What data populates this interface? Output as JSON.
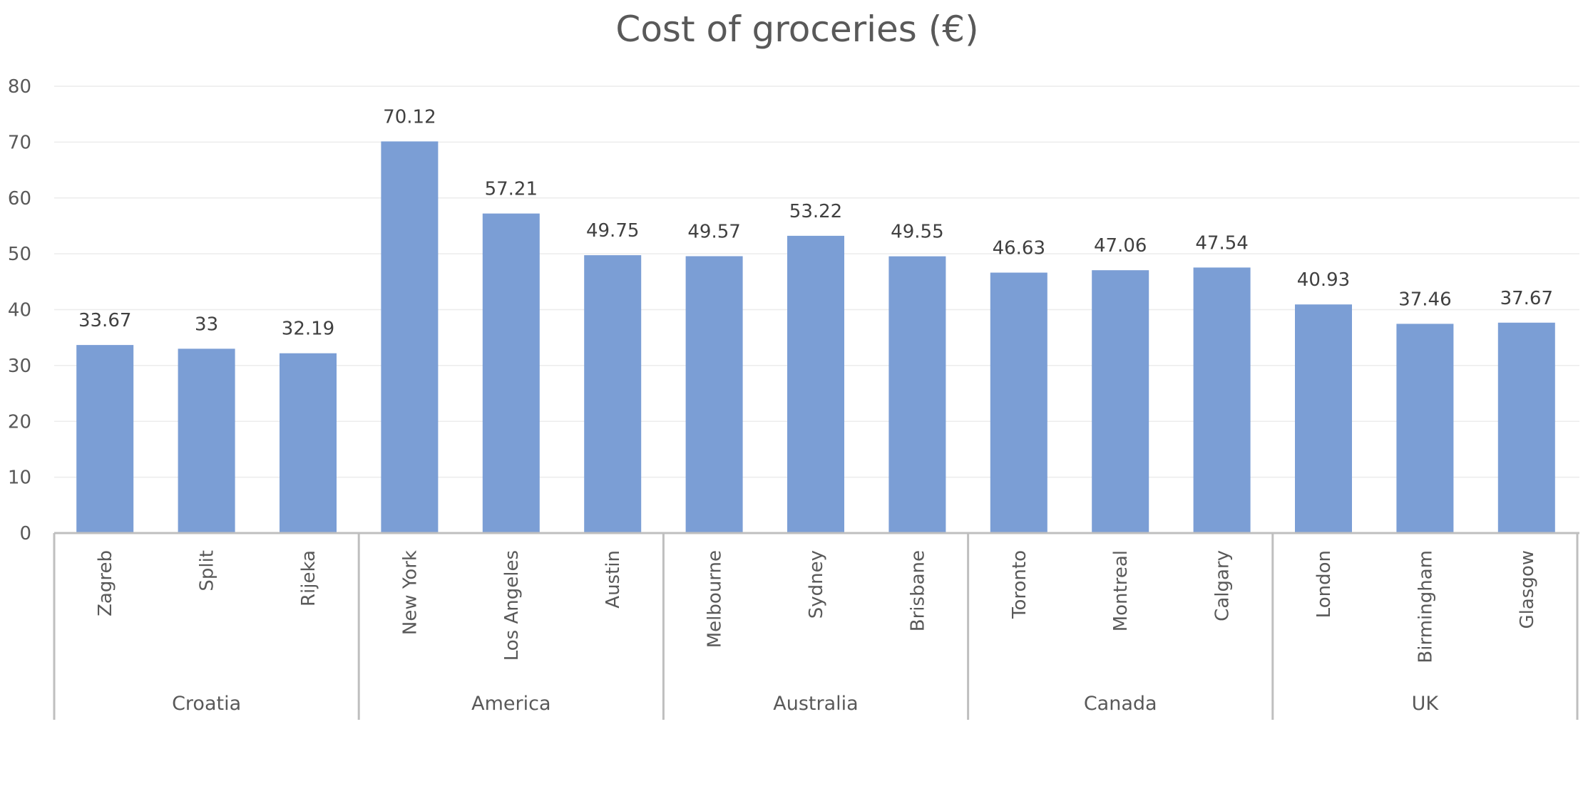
{
  "chart_data": {
    "type": "bar",
    "title": "Cost of groceries (€)",
    "xlabel": "",
    "ylabel": "",
    "ylim": [
      0,
      80
    ],
    "y_ticks": [
      0,
      10,
      20,
      30,
      40,
      50,
      60,
      70,
      80
    ],
    "grid": true,
    "legend": "none",
    "bar_color": "#7b9ed5",
    "groups": [
      {
        "name": "Croatia",
        "categories": [
          "Zagreb",
          "Split",
          "Rijeka"
        ]
      },
      {
        "name": "America",
        "categories": [
          "New York",
          "Los Angeles",
          "Austin"
        ]
      },
      {
        "name": "Australia",
        "categories": [
          "Melbourne",
          "Sydney",
          "Brisbane"
        ]
      },
      {
        "name": "Canada",
        "categories": [
          "Toronto",
          "Montreal",
          "Calgary"
        ]
      },
      {
        "name": "UK",
        "categories": [
          "London",
          "Birmingham",
          "Glasgow"
        ]
      }
    ],
    "categories": [
      "Zagreb",
      "Split",
      "Rijeka",
      "New York",
      "Los Angeles",
      "Austin",
      "Melbourne",
      "Sydney",
      "Brisbane",
      "Toronto",
      "Montreal",
      "Calgary",
      "London",
      "Birmingham",
      "Glasgow"
    ],
    "values": [
      33.67,
      33,
      32.19,
      70.12,
      57.21,
      49.75,
      49.57,
      53.22,
      49.55,
      46.63,
      47.06,
      47.54,
      40.93,
      37.46,
      37.67
    ],
    "data_labels": [
      "33.67",
      "33",
      "32.19",
      "70.12",
      "57.21",
      "49.75",
      "49.57",
      "53.22",
      "49.55",
      "46.63",
      "47.06",
      "47.54",
      "40.93",
      "37.46",
      "37.67"
    ]
  }
}
